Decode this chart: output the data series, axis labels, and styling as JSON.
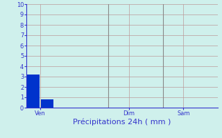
{
  "xlabel": "Précipitations 24h ( mm )",
  "background_color": "#cff0ec",
  "plot_bg_color": "#cff0ec",
  "bar_data": [
    3.2,
    0.8,
    0.0,
    0.0,
    0.0,
    0.0,
    0.0,
    0.0,
    0.0,
    0.0,
    0.0,
    0.0,
    0.0,
    0.0
  ],
  "bar_color": "#0033cc",
  "num_bars": 14,
  "bar_width": 0.9,
  "ylim": [
    0,
    10
  ],
  "yticks": [
    0,
    1,
    2,
    3,
    4,
    5,
    6,
    7,
    8,
    9,
    10
  ],
  "xtick_label_texts": [
    "Ven",
    "Dim",
    "Sam"
  ],
  "xtick_label_positions": [
    0.5,
    7.0,
    11.0
  ],
  "vline_positions": [
    5.5,
    9.5
  ],
  "grid_color": "#bb9999",
  "grid_linewidth": 0.5,
  "vline_color": "#888888",
  "axis_color": "#3333cc",
  "tick_color": "#3333cc",
  "label_color": "#3333cc",
  "tick_fontsize": 6,
  "xlabel_fontsize": 8
}
